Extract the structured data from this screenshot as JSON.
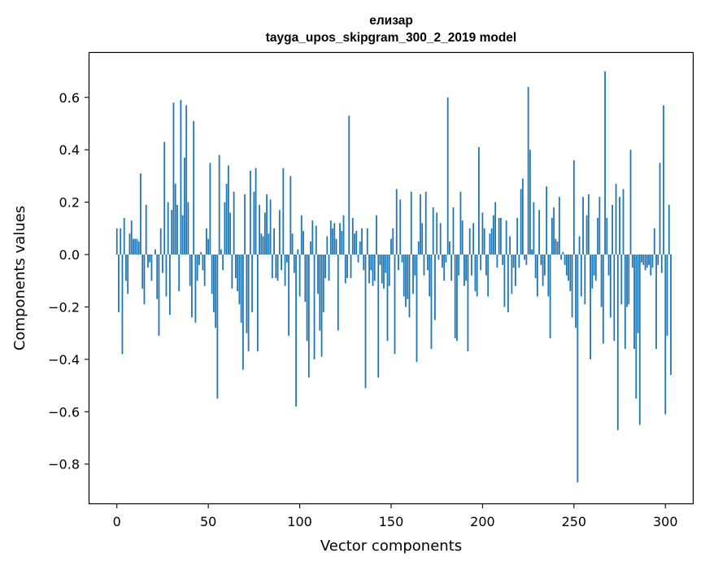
{
  "chart_data": {
    "type": "bar",
    "title": "елизар",
    "subtitle": "tayga_upos_skipgram_300_2_2019 model",
    "xlabel": "Vector components",
    "ylabel": "Components values",
    "xlim": [
      -15,
      315
    ],
    "ylim": [
      -0.95,
      0.77
    ],
    "xticks": [
      0,
      50,
      100,
      150,
      200,
      250,
      300
    ],
    "yticks": [
      0.6,
      0.4,
      0.2,
      0.0,
      -0.2,
      -0.4,
      -0.6,
      -0.8
    ],
    "ytick_labels": [
      "0.6",
      "0.4",
      "0.2",
      "0.0",
      "−0.2",
      "−0.4",
      "−0.6",
      "−0.8"
    ],
    "xtick_labels": [
      "0",
      "50",
      "100",
      "150",
      "200",
      "250",
      "300"
    ],
    "bar_color": "#1f77b4",
    "grid": false,
    "values": [
      0.1,
      -0.22,
      0.1,
      -0.38,
      0.14,
      -0.1,
      -0.15,
      0.08,
      0.13,
      0.06,
      0.06,
      0.06,
      0.05,
      0.31,
      -0.13,
      -0.19,
      0.19,
      -0.05,
      -0.03,
      -0.1,
      0.0,
      0.02,
      -0.17,
      -0.31,
      0.1,
      -0.07,
      0.43,
      -0.16,
      0.2,
      -0.23,
      0.17,
      0.58,
      0.27,
      0.19,
      -0.14,
      0.59,
      0.15,
      0.37,
      0.57,
      0.2,
      -0.12,
      -0.24,
      0.51,
      -0.26,
      -0.1,
      -0.04,
      0.01,
      -0.06,
      -0.12,
      0.1,
      0.06,
      0.35,
      -0.15,
      -0.22,
      -0.28,
      -0.55,
      0.38,
      0.02,
      -0.06,
      0.2,
      0.27,
      0.34,
      0.16,
      -0.13,
      0.24,
      -0.09,
      -0.14,
      -0.19,
      -0.26,
      -0.44,
      0.23,
      -0.3,
      -0.37,
      0.32,
      -0.22,
      0.24,
      0.33,
      -0.37,
      0.19,
      0.08,
      0.07,
      0.16,
      0.23,
      0.08,
      0.21,
      -0.09,
      0.1,
      -0.09,
      -0.1,
      0.17,
      -0.06,
      0.33,
      -0.12,
      -0.03,
      -0.31,
      0.3,
      0.08,
      -0.07,
      -0.58,
      0.02,
      -0.16,
      0.15,
      0.09,
      -0.18,
      -0.33,
      -0.47,
      0.05,
      0.13,
      -0.4,
      0.11,
      -0.15,
      -0.29,
      -0.39,
      -0.22,
      -0.09,
      0.07,
      -0.1,
      0.13,
      0.1,
      0.12,
      0.06,
      -0.29,
      0.12,
      0.09,
      0.15,
      -0.11,
      -0.09,
      0.53,
      -0.09,
      0.14,
      0.08,
      0.09,
      -0.03,
      0.05,
      0.1,
      -0.06,
      -0.51,
      0.1,
      -0.11,
      -0.06,
      -0.12,
      -0.1,
      0.15,
      -0.47,
      -0.04,
      -0.11,
      -0.13,
      -0.07,
      -0.33,
      -0.12,
      0.06,
      0.1,
      -0.38,
      0.25,
      -0.06,
      0.21,
      -0.03,
      -0.16,
      -0.2,
      -0.17,
      -0.24,
      0.24,
      -0.15,
      -0.08,
      -0.41,
      0.05,
      0.23,
      0.12,
      -0.08,
      0.24,
      -0.06,
      -0.16,
      -0.36,
      0.18,
      -0.25,
      0.16,
      -0.02,
      0.12,
      -0.05,
      -0.1,
      -0.03,
      0.6,
      0.05,
      -0.1,
      0.18,
      -0.32,
      -0.33,
      -0.08,
      0.24,
      0.13,
      -0.12,
      -0.1,
      -0.37,
      0.1,
      -0.08,
      0.12,
      -0.14,
      -0.16,
      0.41,
      -0.06,
      0.16,
      0.1,
      -0.08,
      -0.16,
      0.08,
      0.1,
      0.15,
      0.2,
      -0.05,
      0.14,
      0.14,
      -0.04,
      -0.2,
      0.13,
      -0.22,
      0.07,
      -0.15,
      -0.05,
      -0.12,
      0.14,
      -0.05,
      0.25,
      0.29,
      -0.02,
      -0.04,
      0.64,
      0.4,
      0.02,
      0.2,
      -0.09,
      -0.16,
      0.17,
      -0.04,
      -0.12,
      -0.08,
      0.26,
      -0.16,
      -0.32,
      0.14,
      0.18,
      0.06,
      0.05,
      0.22,
      -0.02,
      0.01,
      -0.04,
      -0.08,
      -0.1,
      -0.14,
      -0.24,
      0.36,
      -0.28,
      -0.87,
      0.07,
      -0.16,
      0.22,
      -0.19,
      0.15,
      0.23,
      -0.4,
      -0.13,
      -0.08,
      -0.1,
      0.14,
      0.22,
      -0.2,
      -0.34,
      0.7,
      0.14,
      -0.08,
      -0.24,
      0.19,
      -0.33,
      0.27,
      -0.67,
      0.22,
      -0.19,
      0.25,
      -0.36,
      -0.2,
      -0.19,
      0.4,
      -0.05,
      -0.36,
      -0.55,
      -0.3,
      -0.65,
      -0.03,
      -0.04,
      -0.06,
      -0.05,
      -0.04,
      -0.08,
      -0.05,
      0.1,
      -0.36,
      -0.04,
      0.35,
      -0.07,
      0.57,
      -0.61,
      -0.31,
      0.19,
      -0.46
    ]
  }
}
